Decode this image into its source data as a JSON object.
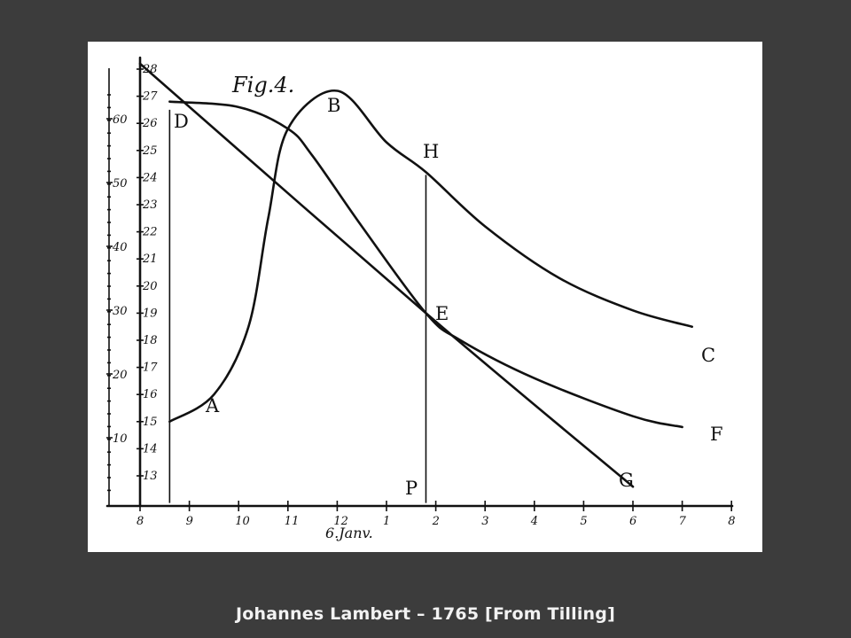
{
  "caption": "Johannes Lambert – 1765 [From Tilling]",
  "chart_data": {
    "type": "line",
    "fig_label": "Fig.4.",
    "date_label": "6.Janv.",
    "x_ticks": [
      "8",
      "9",
      "10",
      "11",
      "12",
      "1",
      "2",
      "3",
      "4",
      "5",
      "6",
      "7",
      "8"
    ],
    "left_ticks": [
      "10",
      "20",
      "30",
      "40",
      "50",
      "60"
    ],
    "inner_ticks": [
      "13",
      "14",
      "15",
      "16",
      "17",
      "18",
      "19",
      "20",
      "21",
      "22",
      "23",
      "24",
      "25",
      "26",
      "27",
      "28"
    ],
    "point_labels": [
      "A",
      "B",
      "C",
      "D",
      "E",
      "F",
      "G",
      "H",
      "P"
    ],
    "series": [
      {
        "values_x": [
          8.6,
          9.5,
          10.2,
          10.6,
          11.0,
          12.0,
          13.0,
          13.8,
          15.0,
          16.5,
          18.0,
          19.2
        ],
        "values_y": [
          15.0,
          16.0,
          18.5,
          22.5,
          25.8,
          27.2,
          25.3,
          24.2,
          22.2,
          20.3,
          19.1,
          18.5
        ]
      },
      {
        "values_x": [
          8.6,
          10.0,
          11.0,
          11.5,
          12.5,
          13.8,
          14.5,
          16.0,
          18.0,
          19.0
        ],
        "values_y": [
          26.8,
          26.6,
          25.8,
          24.8,
          22.2,
          19.0,
          18.0,
          16.6,
          15.2,
          14.8
        ]
      },
      {
        "values_x": [
          8.0,
          13.8,
          18.0
        ],
        "values_y": [
          28.2,
          19.0,
          12.6
        ]
      },
      {
        "values_x": [
          8.6,
          8.6
        ],
        "values_y": [
          12.0,
          26.5
        ]
      },
      {
        "values_x": [
          13.8,
          13.8
        ],
        "values_y": [
          12.0,
          24.1
        ]
      }
    ]
  }
}
